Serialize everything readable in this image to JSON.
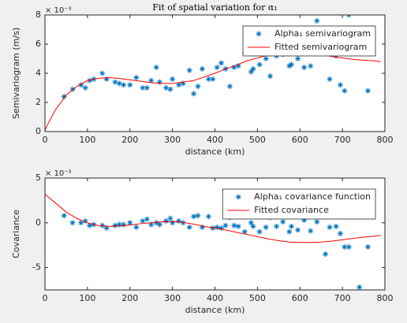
{
  "chart_data": [
    {
      "type": "combo",
      "title": "Fit of spatial variation for α₁",
      "x_label": "distance (km)",
      "y_label": "Semivariogram (m/s)",
      "exponent_label": "× 10⁻³",
      "xlim": [
        0,
        800
      ],
      "xticks": [
        0,
        100,
        200,
        300,
        400,
        500,
        600,
        700,
        800
      ],
      "ylim": [
        0,
        8
      ],
      "yticks": [
        0,
        2,
        4,
        6,
        8
      ],
      "legend": "northeast",
      "box": true,
      "series": [
        {
          "name": "Alpha₁ semivariogram",
          "type": "scatter",
          "color": "#0072bd",
          "x": [
            45,
            65,
            85,
            95,
            105,
            115,
            135,
            145,
            165,
            175,
            185,
            200,
            215,
            230,
            240,
            250,
            262,
            270,
            285,
            295,
            300,
            315,
            325,
            340,
            350,
            360,
            370,
            385,
            395,
            405,
            415,
            425,
            435,
            445,
            455,
            470,
            485,
            490,
            505,
            520,
            530,
            545,
            560,
            575,
            580,
            595,
            610,
            625,
            640,
            660,
            670,
            685,
            695,
            705,
            715,
            760
          ],
          "values": [
            2.4,
            2.9,
            3.2,
            3.0,
            3.5,
            3.6,
            4.0,
            3.6,
            3.4,
            3.3,
            3.2,
            3.2,
            3.7,
            3.0,
            3.0,
            3.5,
            4.4,
            3.4,
            3.0,
            2.9,
            3.6,
            3.2,
            3.3,
            4.2,
            2.6,
            3.1,
            4.3,
            3.6,
            3.6,
            4.4,
            4.7,
            4.3,
            3.1,
            4.4,
            4.5,
            5.4,
            4.1,
            4.3,
            4.6,
            5.0,
            3.8,
            5.2,
            5.3,
            4.5,
            4.6,
            5.0,
            4.4,
            4.5,
            7.6,
            5.4,
            3.6,
            5.2,
            3.2,
            2.8,
            8.0,
            2.8
          ]
        },
        {
          "name": "Fitted semivariogram",
          "type": "line",
          "color": "#ff0000",
          "x": [
            0,
            10,
            25,
            50,
            75,
            100,
            125,
            150,
            175,
            200,
            225,
            250,
            275,
            300,
            325,
            350,
            375,
            400,
            425,
            450,
            475,
            500,
            525,
            550,
            575,
            600,
            625,
            650,
            675,
            700,
            725,
            750,
            775,
            790
          ],
          "values": [
            0.1,
            0.7,
            1.5,
            2.5,
            3.1,
            3.5,
            3.65,
            3.7,
            3.65,
            3.55,
            3.45,
            3.35,
            3.3,
            3.3,
            3.4,
            3.5,
            3.75,
            4.0,
            4.3,
            4.55,
            4.85,
            5.05,
            5.25,
            5.35,
            5.4,
            5.4,
            5.35,
            5.3,
            5.15,
            5.05,
            4.95,
            4.9,
            4.85,
            4.8
          ]
        }
      ]
    },
    {
      "type": "combo",
      "x_label": "distance (km)",
      "y_label": "Covariance",
      "exponent_label": "× 10⁻³",
      "xlim": [
        0,
        800
      ],
      "xticks": [
        0,
        100,
        200,
        300,
        400,
        500,
        600,
        700,
        800
      ],
      "ylim": [
        -7.5,
        5
      ],
      "yticks": [
        -5,
        0,
        5
      ],
      "legend": "northeast",
      "box": true,
      "series": [
        {
          "name": "Alpha₁ covariance function",
          "type": "scatter",
          "color": "#0072bd",
          "x": [
            45,
            65,
            85,
            95,
            105,
            115,
            135,
            145,
            165,
            175,
            185,
            200,
            215,
            230,
            240,
            250,
            262,
            270,
            285,
            295,
            300,
            315,
            325,
            340,
            350,
            360,
            370,
            385,
            395,
            405,
            415,
            425,
            435,
            445,
            455,
            470,
            485,
            490,
            505,
            520,
            530,
            545,
            560,
            575,
            580,
            595,
            610,
            625,
            640,
            660,
            670,
            685,
            695,
            705,
            715,
            740,
            760
          ],
          "values": [
            0.8,
            0.0,
            0.0,
            0.2,
            -0.3,
            -0.2,
            -0.3,
            -0.6,
            -0.3,
            -0.2,
            -0.2,
            0.0,
            -0.5,
            0.2,
            0.4,
            -0.2,
            0.0,
            -0.2,
            0.2,
            0.5,
            0.0,
            0.2,
            0.0,
            -0.5,
            0.7,
            0.8,
            -0.5,
            0.7,
            -0.6,
            -0.5,
            -0.6,
            -0.3,
            0.6,
            -0.3,
            -0.4,
            -1.0,
            0.0,
            -0.4,
            -1.0,
            -0.5,
            0.6,
            -0.4,
            0.1,
            -1.0,
            -0.4,
            -0.8,
            0.3,
            -0.9,
            0.1,
            -3.5,
            -0.5,
            -0.4,
            -1.2,
            -2.7,
            -2.7,
            -7.2,
            -2.7
          ]
        },
        {
          "name": "Fitted covariance",
          "type": "line",
          "color": "#ff0000",
          "x": [
            0,
            25,
            50,
            75,
            100,
            125,
            150,
            175,
            200,
            225,
            250,
            275,
            300,
            325,
            350,
            375,
            400,
            425,
            450,
            475,
            500,
            525,
            550,
            575,
            600,
            625,
            650,
            675,
            700,
            725,
            750,
            775,
            790
          ],
          "values": [
            3.2,
            2.2,
            1.2,
            0.5,
            0.0,
            -0.3,
            -0.4,
            -0.35,
            -0.25,
            -0.1,
            0.0,
            0.1,
            0.15,
            0.05,
            -0.15,
            -0.4,
            -0.6,
            -0.8,
            -1.05,
            -1.3,
            -1.55,
            -1.8,
            -2.0,
            -2.15,
            -2.2,
            -2.2,
            -2.15,
            -2.05,
            -1.9,
            -1.75,
            -1.6,
            -1.5,
            -1.4
          ]
        }
      ]
    }
  ]
}
